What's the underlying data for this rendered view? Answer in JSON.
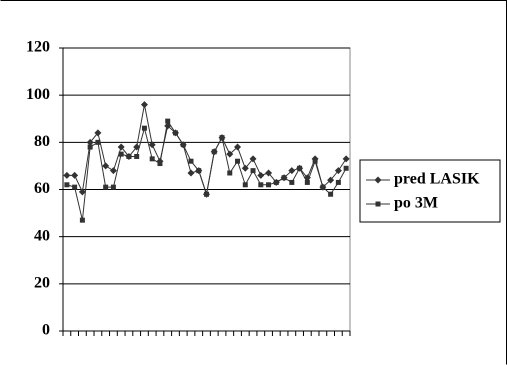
{
  "chart_data": {
    "type": "line",
    "categories": [
      null,
      null,
      null,
      null,
      null,
      null,
      null,
      null,
      null,
      null,
      null,
      null,
      null,
      null,
      null,
      null,
      null,
      null,
      null,
      null,
      null,
      null,
      null,
      null,
      null,
      null,
      null,
      null,
      null,
      null,
      null,
      null,
      null,
      null,
      null,
      null,
      null
    ],
    "series": [
      {
        "name": "pred LASIK",
        "color": "#333333",
        "marker": "diamond",
        "values": [
          66,
          66,
          59,
          80,
          84,
          70,
          68,
          78,
          74,
          78,
          96,
          79,
          72,
          87,
          84,
          79,
          67,
          68,
          58,
          76,
          82,
          75,
          78,
          69,
          73,
          66,
          67,
          63,
          65,
          68,
          69,
          65,
          73,
          61,
          64,
          68,
          73
        ]
      },
      {
        "name": "po 3M",
        "color": "#333333",
        "marker": "square",
        "values": [
          62,
          61,
          47,
          78,
          80,
          61,
          61,
          75,
          74,
          74,
          86,
          73,
          71,
          89,
          84,
          79,
          72,
          68,
          58,
          76,
          82,
          67,
          72,
          62,
          68,
          62,
          62,
          63,
          65,
          63,
          69,
          63,
          72,
          61,
          58,
          63,
          69
        ]
      }
    ],
    "ylim": [
      0,
      120
    ],
    "yticks": [
      0,
      20,
      40,
      60,
      80,
      100,
      120
    ],
    "grid": true,
    "legend": "right"
  }
}
